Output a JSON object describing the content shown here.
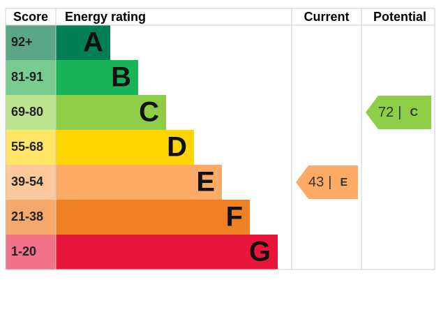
{
  "chart_data": {
    "type": "epc",
    "columns": [
      "Score",
      "Energy rating",
      "Current",
      "Potential"
    ],
    "bands": [
      {
        "score": "92+",
        "letter": "A",
        "color": "#008054",
        "score_color": "#5ba686"
      },
      {
        "score": "81-91",
        "letter": "B",
        "color": "#19b459",
        "score_color": "#79cc90"
      },
      {
        "score": "69-80",
        "letter": "C",
        "color": "#8dce46",
        "score_color": "#bce38e"
      },
      {
        "score": "55-68",
        "letter": "D",
        "color": "#ffd500",
        "score_color": "#ffe566"
      },
      {
        "score": "39-54",
        "letter": "E",
        "color": "#fcaa65",
        "score_color": "#fdc89b"
      },
      {
        "score": "21-38",
        "letter": "F",
        "color": "#ef8023",
        "score_color": "#f4a86b"
      },
      {
        "score": "1-20",
        "letter": "G",
        "color": "#e9153b",
        "score_color": "#f07289"
      }
    ],
    "current": {
      "value": 43,
      "letter": "E",
      "color": "#fcaa65"
    },
    "potential": {
      "value": 72,
      "letter": "C",
      "color": "#8dce46"
    },
    "separator": "|"
  }
}
